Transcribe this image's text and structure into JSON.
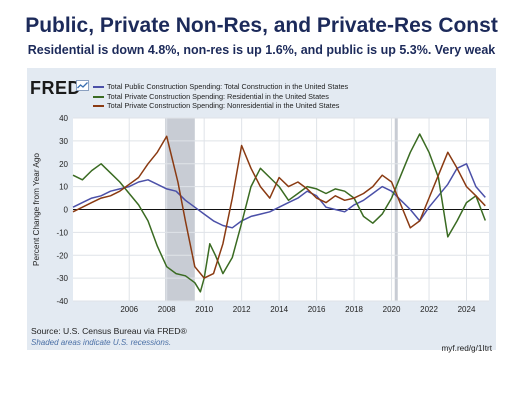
{
  "header": {
    "title": "Public, Private Non-Res, and Private-Res Const",
    "subtitle": "Residential is down 4.8%, non-res is up 1.6%, and public is up 5.3%. Very weak"
  },
  "fred": {
    "logo": "FRED",
    "source": "Source: U.S. Census Bureau via FRED®",
    "shaded_note": "Shaded areas indicate U.S. recessions.",
    "url": "myf.red/g/1Itrt"
  },
  "colors": {
    "public": "#4b50a8",
    "residential": "#3a6b22",
    "nonresidential": "#8a3a12",
    "recession": "#c8ccd4",
    "panel": "#e3eaf2",
    "plot_bg": "#ffffff"
  },
  "chart_data": {
    "type": "line",
    "title": "",
    "xlabel": "",
    "ylabel": "Percent Change from Year Ago",
    "xlim": [
      2003.0,
      2025.2
    ],
    "ylim": [
      -40,
      40
    ],
    "yticks": [
      -40,
      -30,
      -20,
      -10,
      0,
      10,
      20,
      30,
      40
    ],
    "xticks": [
      2006,
      2008,
      2010,
      2012,
      2014,
      2016,
      2018,
      2020,
      2022,
      2024
    ],
    "grid": true,
    "legend_position": "top-left",
    "recessions": [
      [
        2007.92,
        2009.5
      ],
      [
        2020.17,
        2020.33
      ]
    ],
    "series": [
      {
        "key": "public",
        "name": "Total Public Construction Spending: Total Construction in the United States",
        "points": [
          [
            2003.0,
            1
          ],
          [
            2003.5,
            3
          ],
          [
            2004.0,
            5
          ],
          [
            2004.5,
            6
          ],
          [
            2005.0,
            8
          ],
          [
            2005.5,
            9
          ],
          [
            2006.0,
            10
          ],
          [
            2006.5,
            12
          ],
          [
            2007.0,
            13
          ],
          [
            2007.5,
            11
          ],
          [
            2008.0,
            9
          ],
          [
            2008.5,
            8
          ],
          [
            2009.0,
            4
          ],
          [
            2009.5,
            1
          ],
          [
            2010.0,
            -2
          ],
          [
            2010.5,
            -5
          ],
          [
            2011.0,
            -7
          ],
          [
            2011.5,
            -8
          ],
          [
            2012.0,
            -5
          ],
          [
            2012.5,
            -3
          ],
          [
            2013.0,
            -2
          ],
          [
            2013.5,
            -1
          ],
          [
            2014.0,
            1
          ],
          [
            2014.5,
            3
          ],
          [
            2015.0,
            5
          ],
          [
            2015.5,
            8
          ],
          [
            2016.0,
            6
          ],
          [
            2016.5,
            1
          ],
          [
            2017.0,
            0
          ],
          [
            2017.5,
            -1
          ],
          [
            2018.0,
            2
          ],
          [
            2018.5,
            4
          ],
          [
            2019.0,
            7
          ],
          [
            2019.5,
            10
          ],
          [
            2020.0,
            8
          ],
          [
            2020.5,
            4
          ],
          [
            2021.0,
            0
          ],
          [
            2021.5,
            -5
          ],
          [
            2022.0,
            1
          ],
          [
            2022.5,
            6
          ],
          [
            2023.0,
            11
          ],
          [
            2023.5,
            18
          ],
          [
            2024.0,
            20
          ],
          [
            2024.5,
            10
          ],
          [
            2025.0,
            5.3
          ]
        ]
      },
      {
        "key": "residential",
        "name": "Total Private Construction Spending: Residential in the United States",
        "points": [
          [
            2003.0,
            15
          ],
          [
            2003.5,
            13
          ],
          [
            2004.0,
            17
          ],
          [
            2004.5,
            20
          ],
          [
            2005.0,
            16
          ],
          [
            2005.5,
            12
          ],
          [
            2006.0,
            7
          ],
          [
            2006.5,
            2
          ],
          [
            2007.0,
            -5
          ],
          [
            2007.5,
            -16
          ],
          [
            2008.0,
            -25
          ],
          [
            2008.5,
            -28
          ],
          [
            2009.0,
            -29
          ],
          [
            2009.5,
            -32
          ],
          [
            2009.8,
            -36
          ],
          [
            2010.0,
            -30
          ],
          [
            2010.3,
            -15
          ],
          [
            2010.6,
            -20
          ],
          [
            2011.0,
            -28
          ],
          [
            2011.5,
            -21
          ],
          [
            2012.0,
            -6
          ],
          [
            2012.5,
            10
          ],
          [
            2013.0,
            18
          ],
          [
            2013.5,
            14
          ],
          [
            2014.0,
            10
          ],
          [
            2014.5,
            4
          ],
          [
            2015.0,
            7
          ],
          [
            2015.5,
            10
          ],
          [
            2016.0,
            9
          ],
          [
            2016.5,
            7
          ],
          [
            2017.0,
            9
          ],
          [
            2017.5,
            8
          ],
          [
            2018.0,
            5
          ],
          [
            2018.5,
            -3
          ],
          [
            2019.0,
            -6
          ],
          [
            2019.5,
            -2
          ],
          [
            2020.0,
            5
          ],
          [
            2020.5,
            15
          ],
          [
            2021.0,
            25
          ],
          [
            2021.5,
            33
          ],
          [
            2022.0,
            25
          ],
          [
            2022.5,
            14
          ],
          [
            2023.0,
            -12
          ],
          [
            2023.5,
            -5
          ],
          [
            2024.0,
            3
          ],
          [
            2024.5,
            6
          ],
          [
            2025.0,
            -4.8
          ]
        ]
      },
      {
        "key": "nonresidential",
        "name": "Total Private Construction Spending: Nonresidential in the United States",
        "points": [
          [
            2003.0,
            -1
          ],
          [
            2003.5,
            1
          ],
          [
            2004.0,
            3
          ],
          [
            2004.5,
            5
          ],
          [
            2005.0,
            6
          ],
          [
            2005.5,
            8
          ],
          [
            2006.0,
            11
          ],
          [
            2006.5,
            14
          ],
          [
            2007.0,
            20
          ],
          [
            2007.5,
            25
          ],
          [
            2008.0,
            32
          ],
          [
            2008.3,
            22
          ],
          [
            2008.6,
            12
          ],
          [
            2009.0,
            -5
          ],
          [
            2009.5,
            -25
          ],
          [
            2010.0,
            -30
          ],
          [
            2010.5,
            -28
          ],
          [
            2011.0,
            -15
          ],
          [
            2011.5,
            5
          ],
          [
            2012.0,
            28
          ],
          [
            2012.5,
            18
          ],
          [
            2013.0,
            10
          ],
          [
            2013.5,
            5
          ],
          [
            2014.0,
            14
          ],
          [
            2014.5,
            10
          ],
          [
            2015.0,
            12
          ],
          [
            2015.5,
            9
          ],
          [
            2016.0,
            5
          ],
          [
            2016.5,
            3
          ],
          [
            2017.0,
            6
          ],
          [
            2017.5,
            4
          ],
          [
            2018.0,
            5
          ],
          [
            2018.5,
            7
          ],
          [
            2019.0,
            10
          ],
          [
            2019.5,
            15
          ],
          [
            2020.0,
            12
          ],
          [
            2020.5,
            2
          ],
          [
            2021.0,
            -8
          ],
          [
            2021.5,
            -5
          ],
          [
            2022.0,
            5
          ],
          [
            2022.5,
            15
          ],
          [
            2023.0,
            25
          ],
          [
            2023.5,
            18
          ],
          [
            2024.0,
            10
          ],
          [
            2024.5,
            6
          ],
          [
            2025.0,
            1.6
          ]
        ]
      }
    ]
  }
}
